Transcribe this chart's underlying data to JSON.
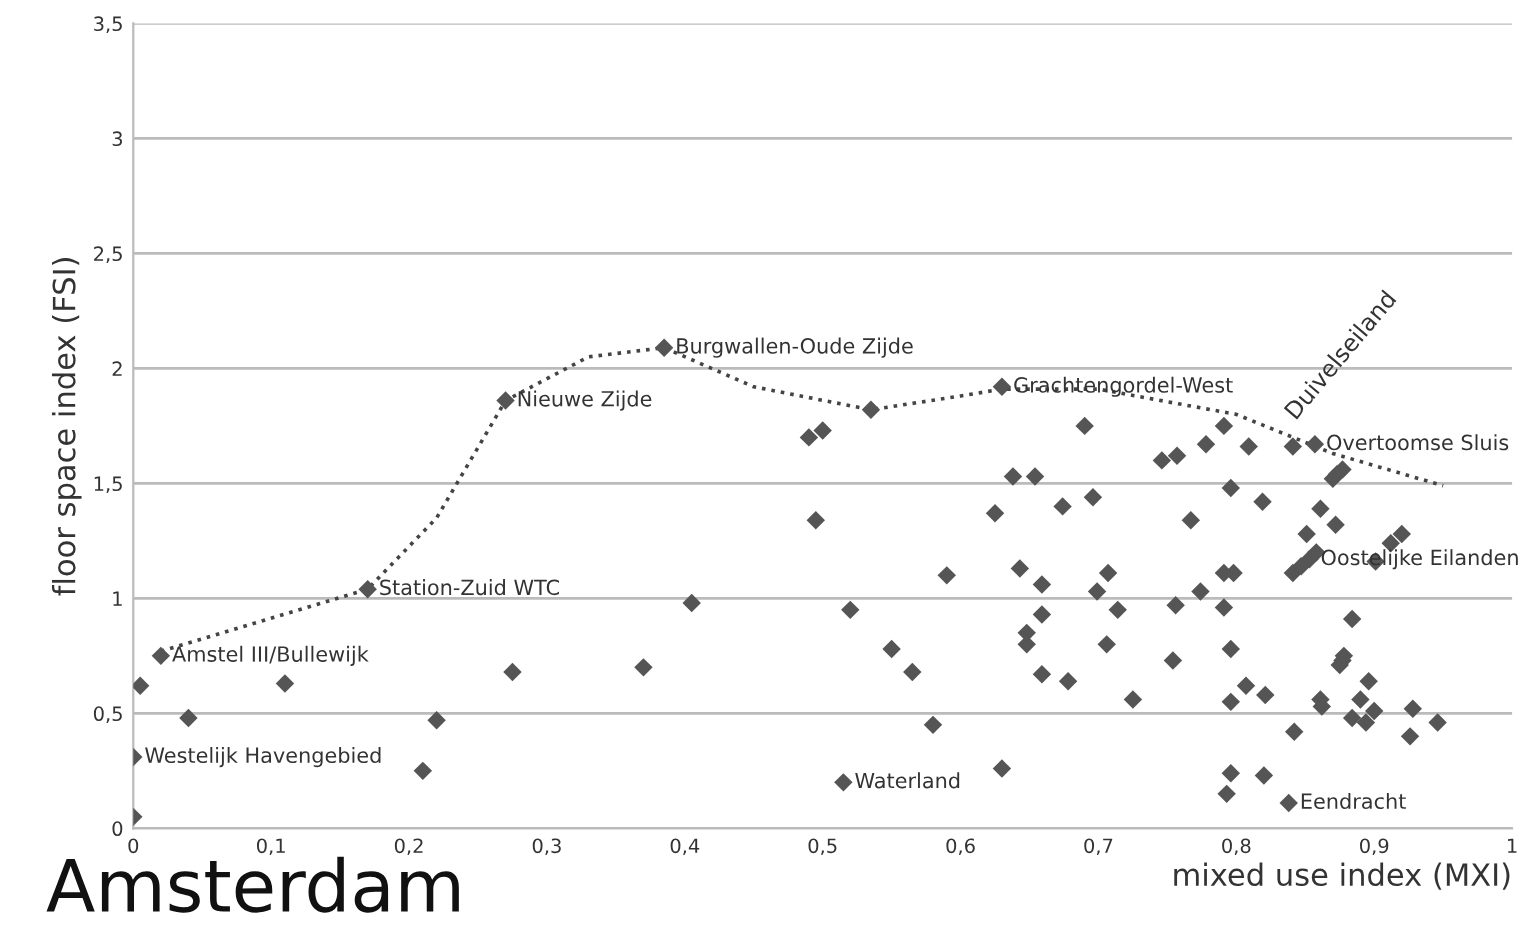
{
  "chart_data": {
    "type": "scatter",
    "title": "Amsterdam",
    "xlabel": "mixed use index (MXI)",
    "ylabel": "floor space index (FSI)",
    "xlim": [
      0,
      1
    ],
    "ylim": [
      0,
      3.5
    ],
    "xticks": [
      0,
      {
        "value": 0.1,
        "label": "0,1"
      },
      {
        "value": 0.2,
        "label": "0,2"
      },
      {
        "value": 0.3,
        "label": "0,3"
      },
      {
        "value": 0.4,
        "label": "0,4"
      },
      {
        "value": 0.5,
        "label": "0,5"
      },
      {
        "value": 0.6,
        "label": "0,6"
      },
      {
        "value": 0.7,
        "label": "0,7"
      },
      {
        "value": 0.8,
        "label": "0,8"
      },
      {
        "value": 0.9,
        "label": "0,9"
      },
      1
    ],
    "yticks": [
      0,
      {
        "value": 0.5,
        "label": "0,5"
      },
      1,
      {
        "value": 1.5,
        "label": "1,5"
      },
      2,
      {
        "value": 2.5,
        "label": "2,5"
      },
      3,
      {
        "value": 3.5,
        "label": "3,5"
      }
    ],
    "grid": "y",
    "legend": false,
    "series": [
      {
        "type": "scatter",
        "color": "#555555",
        "marker": "diamond",
        "x": [
          0,
          0,
          0.005,
          0.02,
          0.04,
          0.11,
          0.17,
          0.21,
          0.22,
          0.27,
          0.275,
          0.37,
          0.385,
          0.405,
          0.49,
          0.5,
          0.495,
          0.52,
          0.535,
          0.55,
          0.565,
          0.58,
          0.59,
          0.515,
          0.63,
          0.625,
          0.63,
          0.69,
          0.638,
          0.654,
          0.674,
          0.696,
          0.746,
          0.757,
          0.778,
          0.791,
          0.809,
          0.796,
          0.841,
          0.857,
          0.87,
          0.873,
          0.877,
          0.819,
          0.767,
          0.861,
          0.872,
          0.851,
          0.92,
          0.912,
          0.901,
          0.841,
          0.847,
          0.853,
          0.858,
          0.791,
          0.798,
          0.774,
          0.643,
          0.659,
          0.699,
          0.707,
          0.659,
          0.714,
          0.756,
          0.791,
          0.648,
          0.648,
          0.706,
          0.796,
          0.884,
          0.754,
          0.877,
          0.875,
          0.878,
          0.659,
          0.678,
          0.725,
          0.796,
          0.807,
          0.821,
          0.861,
          0.862,
          0.896,
          0.89,
          0.884,
          0.894,
          0.9,
          0.928,
          0.926,
          0.946,
          0.842,
          0.796,
          0.82,
          0.793,
          0.838
        ],
        "values": [
          0.05,
          0.31,
          0.62,
          0.75,
          0.48,
          0.63,
          1.04,
          0.25,
          0.47,
          1.86,
          0.68,
          0.7,
          2.09,
          0.98,
          1.7,
          1.73,
          1.34,
          0.95,
          1.82,
          0.78,
          0.68,
          0.45,
          1.1,
          0.2,
          0.26,
          1.37,
          1.92,
          1.75,
          1.53,
          1.53,
          1.4,
          1.44,
          1.6,
          1.62,
          1.67,
          1.75,
          1.66,
          1.48,
          1.66,
          1.67,
          1.52,
          1.54,
          1.56,
          1.42,
          1.34,
          1.39,
          1.32,
          1.28,
          1.28,
          1.24,
          1.16,
          1.11,
          1.14,
          1.17,
          1.2,
          1.11,
          1.11,
          1.03,
          1.13,
          1.06,
          1.03,
          1.11,
          0.93,
          0.95,
          0.97,
          0.96,
          0.85,
          0.8,
          0.8,
          0.78,
          0.91,
          0.73,
          0.73,
          0.71,
          0.75,
          0.67,
          0.64,
          0.56,
          0.55,
          0.62,
          0.58,
          0.56,
          0.53,
          0.64,
          0.56,
          0.48,
          0.46,
          0.51,
          0.52,
          0.4,
          0.46,
          0.42,
          0.24,
          0.23,
          0.15,
          0.11
        ]
      },
      {
        "type": "line",
        "color": "#444444",
        "marker": "none",
        "line_style": "dotted",
        "x": [
          0.02,
          0.17,
          0.22,
          0.27,
          0.33,
          0.385,
          0.45,
          0.535,
          0.6,
          0.63,
          0.7,
          0.8,
          0.87,
          0.95
        ],
        "values": [
          0.77,
          1.04,
          1.35,
          1.86,
          2.05,
          2.09,
          1.92,
          1.82,
          1.88,
          1.91,
          1.91,
          1.8,
          1.63,
          1.49
        ]
      }
    ],
    "annotations": [
      {
        "text": "Westelijk Havengebied",
        "x": 0,
        "y": 0.31
      },
      {
        "text": "Amstel III/Bullewijk",
        "x": 0.02,
        "y": 0.75
      },
      {
        "text": "Station-Zuid WTC",
        "x": 0.17,
        "y": 1.04
      },
      {
        "text": "Nieuwe Zijde",
        "x": 0.27,
        "y": 1.86
      },
      {
        "text": "Burgwallen-Oude Zijde",
        "x": 0.385,
        "y": 2.09
      },
      {
        "text": "Waterland",
        "x": 0.515,
        "y": 0.2
      },
      {
        "text": "Grachtengordel-West",
        "x": 0.63,
        "y": 1.92
      },
      {
        "text": "Oostelijke Eilanden",
        "x": 0.853,
        "y": 1.17
      },
      {
        "text": "Overtoomse Sluis",
        "x": 0.857,
        "y": 1.67
      },
      {
        "text": "Duivelseiland",
        "x": 0.841,
        "y": 1.66
      },
      {
        "text": "Eendracht",
        "x": 0.838,
        "y": 0.11
      }
    ]
  }
}
